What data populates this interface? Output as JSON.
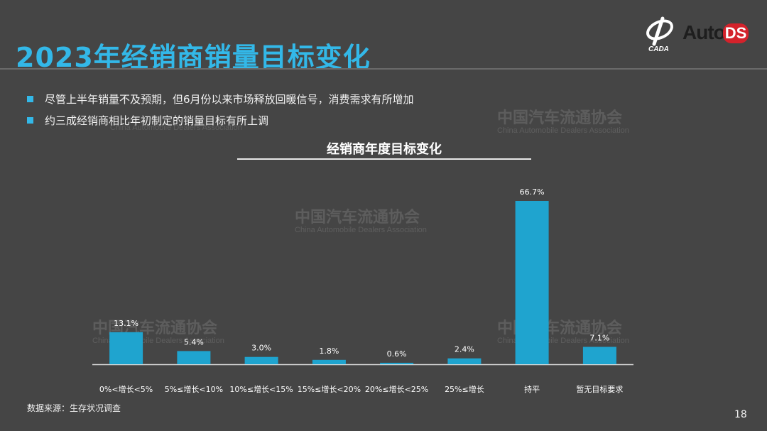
{
  "page": {
    "title": "2023年经销商销量目标变化",
    "bullets": [
      "尽管上半年销量不及预期，但6月份以来市场释放回暖信号，消费需求有所增加",
      "约三成经销商相比年初制定的销量目标有所上调"
    ],
    "source": "数据来源：生存状况调查",
    "page_number": "18",
    "logo": {
      "mark_text": "CADA",
      "auto_text": "Auto",
      "ds_text": "DS"
    },
    "watermark": {
      "cn": "中国汽车流通协会",
      "en": "China Automobile Dealers Association",
      "mark": "CADA"
    }
  },
  "colors": {
    "bar": "#1fa4cf",
    "title": "#33b8e8",
    "background": "#454545"
  },
  "chart_data": {
    "type": "bar",
    "title": "经销商年度目标变化",
    "categories": [
      "0%<增长<5%",
      "5%≤增长<10%",
      "10%≤增长<15%",
      "15%≤增长<20%",
      "20%≤增长<25%",
      "25%≤增长",
      "持平",
      "暂无目标要求"
    ],
    "values": [
      13.1,
      5.4,
      3.0,
      1.8,
      0.6,
      2.4,
      66.7,
      7.1
    ],
    "value_labels": [
      "13.1%",
      "5.4%",
      "3.0%",
      "1.8%",
      "0.6%",
      "2.4%",
      "66.7%",
      "7.1%"
    ],
    "ylim": [
      0,
      66.7
    ],
    "grid": false,
    "legend": "none"
  }
}
